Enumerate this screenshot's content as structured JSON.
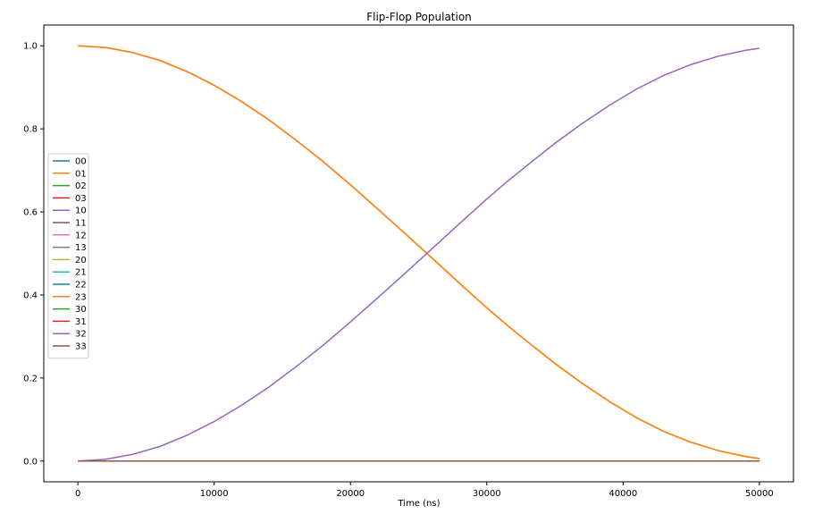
{
  "chart_data": {
    "type": "line",
    "title": "Flip-Flop Population",
    "xlabel": "Time (ns)",
    "ylabel": "",
    "xlim": [
      -2500,
      52500
    ],
    "ylim": [
      -0.05,
      1.05
    ],
    "x_ticks": [
      0,
      10000,
      20000,
      30000,
      40000,
      50000
    ],
    "y_ticks": [
      0.0,
      0.2,
      0.4,
      0.6,
      0.8,
      1.0
    ],
    "x_tick_labels": [
      "0",
      "10000",
      "20000",
      "30000",
      "40000",
      "50000"
    ],
    "y_tick_labels": [
      "0.0",
      "0.2",
      "0.4",
      "0.6",
      "0.8",
      "1.0"
    ],
    "grid": false,
    "legend_position": "center-left",
    "x": [
      0,
      2000,
      4000,
      6000,
      8000,
      10000,
      12000,
      14000,
      16000,
      18000,
      20000,
      22000,
      24000,
      26000,
      28000,
      30000,
      31500,
      33000,
      35000,
      37000,
      39000,
      41000,
      43000,
      45000,
      47000,
      49000,
      50000
    ],
    "series": [
      {
        "name": "00",
        "color": "#1f77b4",
        "values": [
          0,
          0,
          0,
          0,
          0,
          0,
          0,
          0,
          0,
          0,
          0,
          0,
          0,
          0,
          0,
          0,
          0,
          0,
          0,
          0,
          0,
          0,
          0,
          0,
          0,
          0,
          0
        ]
      },
      {
        "name": "01",
        "color": "#ff7f0e",
        "values": [
          1.0,
          0.996,
          0.984,
          0.965,
          0.938,
          0.905,
          0.866,
          0.822,
          0.773,
          0.721,
          0.665,
          0.607,
          0.548,
          0.488,
          0.428,
          0.369,
          0.327,
          0.287,
          0.235,
          0.187,
          0.143,
          0.104,
          0.071,
          0.045,
          0.025,
          0.011,
          0.006
        ]
      },
      {
        "name": "02",
        "color": "#2ca02c",
        "values": [
          0,
          0,
          0,
          0,
          0,
          0,
          0,
          0,
          0,
          0,
          0,
          0,
          0,
          0,
          0,
          0,
          0,
          0,
          0,
          0,
          0,
          0,
          0,
          0,
          0,
          0,
          0
        ]
      },
      {
        "name": "03",
        "color": "#d62728",
        "values": [
          0,
          0,
          0,
          0,
          0,
          0,
          0,
          0,
          0,
          0,
          0,
          0,
          0,
          0,
          0,
          0,
          0,
          0,
          0,
          0,
          0,
          0,
          0,
          0,
          0,
          0,
          0
        ]
      },
      {
        "name": "10",
        "color": "#9467bd",
        "values": [
          0,
          0,
          0,
          0,
          0,
          0,
          0,
          0,
          0,
          0,
          0,
          0,
          0,
          0,
          0,
          0,
          0,
          0,
          0,
          0,
          0,
          0,
          0,
          0,
          0,
          0,
          0
        ]
      },
      {
        "name": "11",
        "color": "#8c564b",
        "values": [
          0,
          0,
          0,
          0,
          0,
          0,
          0,
          0,
          0,
          0,
          0,
          0,
          0,
          0,
          0,
          0,
          0,
          0,
          0,
          0,
          0,
          0,
          0,
          0,
          0,
          0,
          0
        ]
      },
      {
        "name": "12",
        "color": "#e377c2",
        "values": [
          0,
          0,
          0,
          0,
          0,
          0,
          0,
          0,
          0,
          0,
          0,
          0,
          0,
          0,
          0,
          0,
          0,
          0,
          0,
          0,
          0,
          0,
          0,
          0,
          0,
          0,
          0
        ]
      },
      {
        "name": "13",
        "color": "#7f7f7f",
        "values": [
          0,
          0,
          0,
          0,
          0,
          0,
          0,
          0,
          0,
          0,
          0,
          0,
          0,
          0,
          0,
          0,
          0,
          0,
          0,
          0,
          0,
          0,
          0,
          0,
          0,
          0,
          0
        ]
      },
      {
        "name": "20",
        "color": "#bcbd22",
        "values": [
          0,
          0,
          0,
          0,
          0,
          0,
          0,
          0,
          0,
          0,
          0,
          0,
          0,
          0,
          0,
          0,
          0,
          0,
          0,
          0,
          0,
          0,
          0,
          0,
          0,
          0,
          0
        ]
      },
      {
        "name": "21",
        "color": "#17becf",
        "values": [
          0,
          0,
          0,
          0,
          0,
          0,
          0,
          0,
          0,
          0,
          0,
          0,
          0,
          0,
          0,
          0,
          0,
          0,
          0,
          0,
          0,
          0,
          0,
          0,
          0,
          0,
          0
        ]
      },
      {
        "name": "22",
        "color": "#1f77b4",
        "values": [
          0,
          0,
          0,
          0,
          0,
          0,
          0,
          0,
          0,
          0,
          0,
          0,
          0,
          0,
          0,
          0,
          0,
          0,
          0,
          0,
          0,
          0,
          0,
          0,
          0,
          0,
          0
        ]
      },
      {
        "name": "23",
        "color": "#ff7f0e",
        "values": [
          1.0,
          0.996,
          0.984,
          0.965,
          0.938,
          0.905,
          0.866,
          0.822,
          0.773,
          0.721,
          0.665,
          0.607,
          0.548,
          0.488,
          0.428,
          0.369,
          0.327,
          0.287,
          0.235,
          0.187,
          0.143,
          0.104,
          0.071,
          0.045,
          0.025,
          0.011,
          0.006
        ]
      },
      {
        "name": "30",
        "color": "#2ca02c",
        "values": [
          0,
          0,
          0,
          0,
          0,
          0,
          0,
          0,
          0,
          0,
          0,
          0,
          0,
          0,
          0,
          0,
          0,
          0,
          0,
          0,
          0,
          0,
          0,
          0,
          0,
          0,
          0
        ]
      },
      {
        "name": "31",
        "color": "#d62728",
        "values": [
          0,
          0,
          0,
          0,
          0,
          0,
          0,
          0,
          0,
          0,
          0,
          0,
          0,
          0,
          0,
          0,
          0,
          0,
          0,
          0,
          0,
          0,
          0,
          0,
          0,
          0,
          0
        ]
      },
      {
        "name": "32",
        "color": "#9467bd",
        "values": [
          0,
          0.004,
          0.016,
          0.035,
          0.062,
          0.095,
          0.134,
          0.178,
          0.227,
          0.279,
          0.335,
          0.393,
          0.452,
          0.512,
          0.572,
          0.631,
          0.673,
          0.713,
          0.765,
          0.813,
          0.857,
          0.896,
          0.929,
          0.955,
          0.975,
          0.989,
          0.994
        ]
      },
      {
        "name": "33",
        "color": "#8c564b",
        "values": [
          0,
          0,
          0,
          0,
          0,
          0,
          0,
          0,
          0,
          0,
          0,
          0,
          0,
          0,
          0,
          0,
          0,
          0,
          0,
          0,
          0,
          0,
          0,
          0,
          0,
          0,
          0
        ]
      }
    ]
  }
}
